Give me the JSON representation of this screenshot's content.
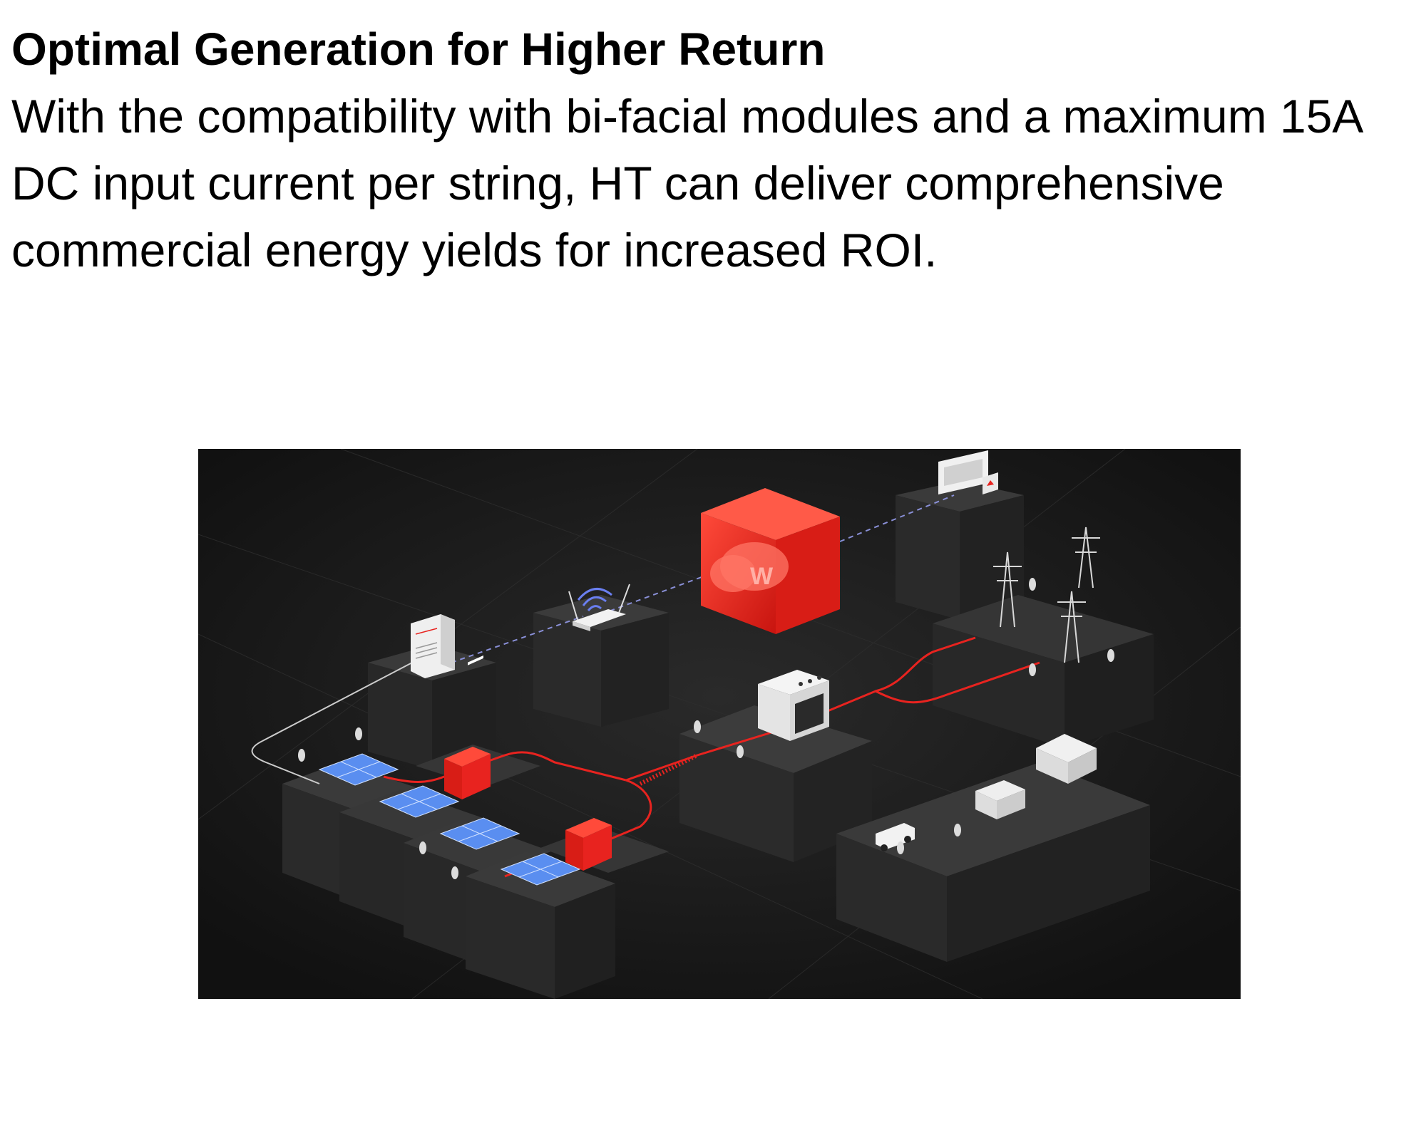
{
  "article": {
    "title": "Optimal Generation for Higher Return",
    "body_lines": [
      "With the compatibility with bi-facial modules and a maximum 15A",
      "DC input current per string, HT can deliver comprehensive",
      "commercial energy yields for increased ROI."
    ]
  },
  "illustration": {
    "background_color": "#1c1c1c",
    "accent_color": "#e8231f",
    "panel_color": "#5a8ef0",
    "cloud_logo_text": "W"
  }
}
